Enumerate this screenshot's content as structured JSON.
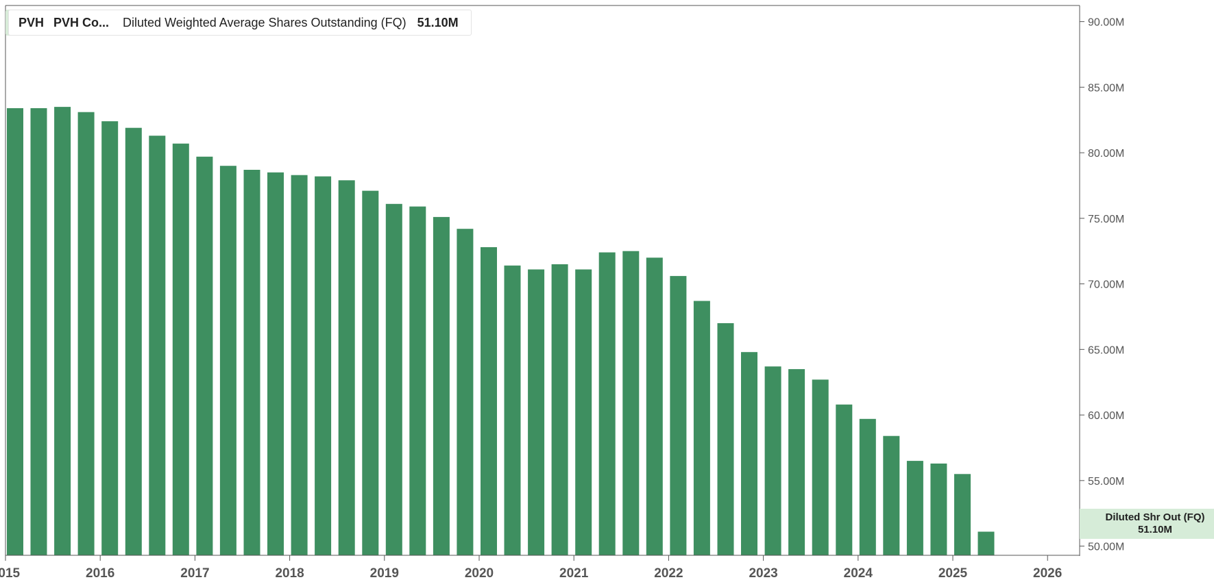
{
  "legend": {
    "ticker": "PVH",
    "company": "PVH Co...",
    "metric": "Diluted Weighted Average Shares Outstanding (FQ)",
    "value": "51.10M"
  },
  "last_value_box": {
    "label": "Diluted Shr Out (FQ)",
    "value": "51.10M"
  },
  "colors": {
    "bar": "#3e8f60",
    "last_box_bg": "#d6ecd8"
  },
  "chart_data": {
    "type": "bar",
    "unit": "M",
    "y_ticks": [
      "90.00M",
      "85.00M",
      "80.00M",
      "75.00M",
      "70.00M",
      "65.00M",
      "60.00M",
      "55.00M",
      "50.00M"
    ],
    "x_ticks": [
      "2015",
      "2016",
      "2017",
      "2018",
      "2019",
      "2020",
      "2021",
      "2022",
      "2023",
      "2024",
      "2025",
      "2026"
    ],
    "ylim": [
      49.3,
      91
    ],
    "xlim": [
      2015.0,
      2026.35
    ],
    "grid": false,
    "legend_position": "top-left",
    "series": [
      {
        "x": [
          2015.0,
          2015.25,
          2015.5,
          2015.75,
          2016.0,
          2016.25,
          2016.5,
          2016.75,
          2017.0,
          2017.25,
          2017.5,
          2017.75,
          2018.0,
          2018.25,
          2018.5,
          2018.75,
          2019.0,
          2019.25,
          2019.5,
          2019.75,
          2020.0,
          2020.25,
          2020.5,
          2020.75,
          2021.0,
          2021.25,
          2021.5,
          2021.75,
          2022.0,
          2022.25,
          2022.5,
          2022.75,
          2023.0,
          2023.25,
          2023.5,
          2023.75,
          2024.0,
          2024.25,
          2024.5,
          2024.75,
          2025.0,
          2025.25
        ],
        "values": [
          83.4,
          83.4,
          83.5,
          83.1,
          82.4,
          81.9,
          81.3,
          80.7,
          79.7,
          79.0,
          78.7,
          78.5,
          78.3,
          78.2,
          77.9,
          77.1,
          76.1,
          75.9,
          75.1,
          74.2,
          72.8,
          71.4,
          71.1,
          71.5,
          71.1,
          72.4,
          72.5,
          72.0,
          70.6,
          68.7,
          67.0,
          64.8,
          63.7,
          63.5,
          62.7,
          60.8,
          59.7,
          58.4,
          56.5,
          56.3,
          55.5,
          51.1
        ]
      }
    ]
  }
}
